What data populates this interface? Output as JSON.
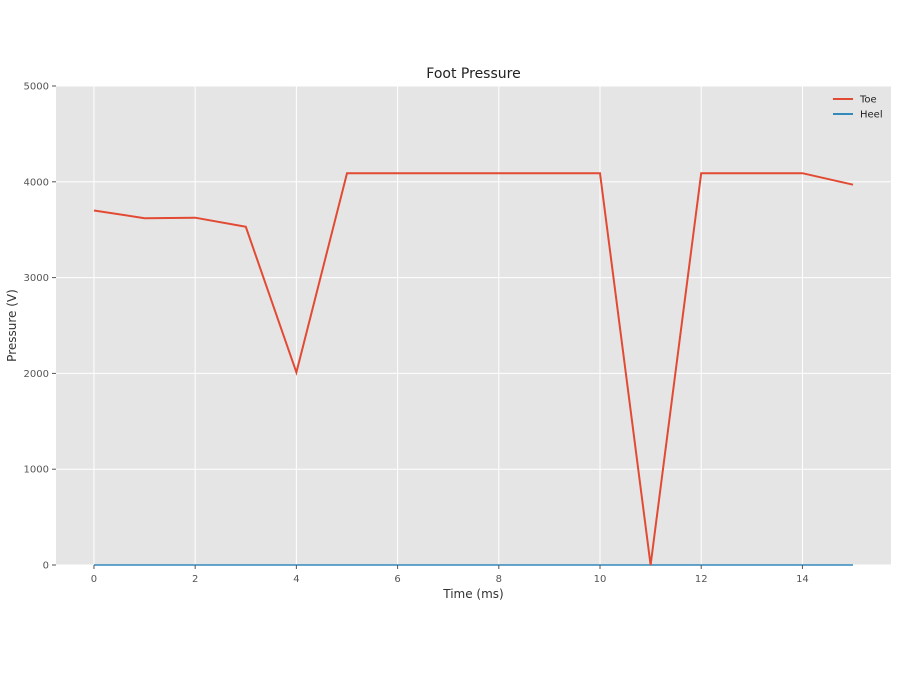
{
  "chart_data": {
    "type": "line",
    "title": "Foot Pressure",
    "xlabel": "Time (ms)",
    "ylabel": "Pressure (V)",
    "xlim": [
      -0.75,
      15.75
    ],
    "ylim": [
      0,
      5000
    ],
    "xticks": [
      0,
      2,
      4,
      6,
      8,
      10,
      12,
      14
    ],
    "yticks": [
      0,
      1000,
      2000,
      3000,
      4000,
      5000
    ],
    "grid": true,
    "legend_position": "top-right",
    "x": [
      0,
      1,
      2,
      3,
      4,
      5,
      6,
      7,
      8,
      9,
      10,
      11,
      12,
      13,
      14,
      15
    ],
    "series": [
      {
        "name": "Toe",
        "color": "#e24a33",
        "values": [
          3700,
          3620,
          3625,
          3530,
          2010,
          4090,
          4090,
          4090,
          4090,
          4090,
          4090,
          0,
          4090,
          4090,
          4090,
          3970
        ]
      },
      {
        "name": "Heel",
        "color": "#348abd",
        "values": [
          0,
          0,
          0,
          0,
          0,
          0,
          0,
          0,
          0,
          0,
          0,
          0,
          0,
          0,
          0,
          0
        ]
      }
    ]
  }
}
